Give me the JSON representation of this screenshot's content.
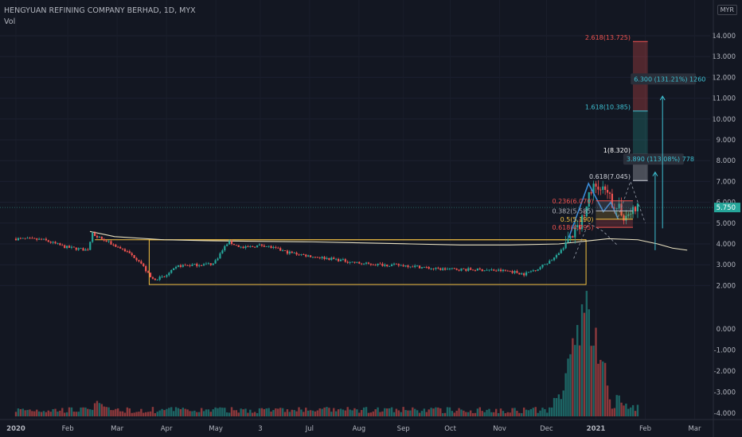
{
  "header": {
    "symbol_line": "HENGYUAN REFINING COMPANY BERHAD, 1D, MYX",
    "volume_label": "Vol",
    "currency": "MYR"
  },
  "colors": {
    "background": "#131722",
    "up": "#26a69a",
    "down": "#ef5350",
    "axis_text": "#b2b5be",
    "box": "#f5c242",
    "wave": "#3b8cd8",
    "ma": "#e9e1c0",
    "arrow": "#3ec1d3"
  },
  "chart_data": {
    "type": "candlestick",
    "price_axis": {
      "ticks": [
        "14.000",
        "13.000",
        "12.000",
        "11.000",
        "10.000",
        "9.000",
        "8.000",
        "7.000",
        "6.000",
        "5.000",
        "4.000",
        "3.000",
        "2.000"
      ],
      "range": [
        1.4,
        15.7
      ]
    },
    "volume_axis": {
      "ticks": [
        "0.000",
        "-1.000",
        "-2.000",
        "-3.000",
        "-4.000"
      ]
    },
    "time_axis": [
      "2020",
      "Feb",
      "Mar",
      "Apr",
      "May",
      "3",
      "Jul",
      "Aug",
      "Sep",
      "Oct",
      "Nov",
      "Dec",
      "2021",
      "Feb",
      "Mar"
    ],
    "last_price": "5.750",
    "price_path": [
      [
        0,
        4.25
      ],
      [
        0.55,
        4.2
      ],
      [
        1.0,
        3.85
      ],
      [
        1.45,
        3.7
      ],
      [
        1.55,
        4.5
      ],
      [
        1.85,
        4.1
      ],
      [
        2.2,
        3.7
      ],
      [
        2.5,
        3.2
      ],
      [
        2.75,
        2.3
      ],
      [
        3.0,
        2.4
      ],
      [
        3.3,
        2.95
      ],
      [
        3.7,
        3.0
      ],
      [
        4.0,
        3.05
      ],
      [
        4.3,
        4.1
      ],
      [
        4.6,
        3.8
      ],
      [
        5.0,
        3.95
      ],
      [
        5.5,
        3.6
      ],
      [
        6.0,
        3.4
      ],
      [
        6.5,
        3.25
      ],
      [
        7.0,
        3.05
      ],
      [
        7.5,
        3.0
      ],
      [
        8.0,
        2.95
      ],
      [
        8.5,
        2.8
      ],
      [
        9.0,
        2.78
      ],
      [
        9.5,
        2.75
      ],
      [
        10.0,
        2.7
      ],
      [
        10.3,
        2.55
      ],
      [
        10.6,
        2.85
      ],
      [
        10.95,
        3.4
      ],
      [
        11.2,
        4.2
      ],
      [
        11.45,
        5.0
      ],
      [
        11.62,
        6.5
      ],
      [
        11.75,
        6.8
      ],
      [
        11.9,
        6.5
      ],
      [
        12.05,
        6.1
      ],
      [
        12.2,
        5.7
      ],
      [
        12.35,
        5.3
      ],
      [
        12.5,
        5.6
      ],
      [
        12.6,
        5.75
      ]
    ],
    "ma_line": [
      [
        1.5,
        4.6
      ],
      [
        2.0,
        4.35
      ],
      [
        3.0,
        4.2
      ],
      [
        4.0,
        4.15
      ],
      [
        5.0,
        4.12
      ],
      [
        6.0,
        4.1
      ],
      [
        7.0,
        4.05
      ],
      [
        8.0,
        4.0
      ],
      [
        9.0,
        3.95
      ],
      [
        10.0,
        3.95
      ],
      [
        11.0,
        4.0
      ],
      [
        11.6,
        4.15
      ],
      [
        12.0,
        4.25
      ],
      [
        12.6,
        4.2
      ],
      [
        13.0,
        4.0
      ],
      [
        13.3,
        3.8
      ],
      [
        13.6,
        3.7
      ]
    ],
    "consolidation_box": {
      "from": 2.7,
      "to": 11.55,
      "top": 4.2,
      "bottom": 2.05
    },
    "wave_path": [
      [
        11.2,
        4.3
      ],
      [
        11.6,
        6.9
      ],
      [
        11.9,
        5.55
      ],
      [
        12.05,
        6.0
      ],
      [
        12.2,
        5.2
      ]
    ],
    "fibonacci_levels": [
      {
        "label": "0.618(4.795)",
        "value": 4.795,
        "color": "#ef5350"
      },
      {
        "label": "0.5(5.190)",
        "value": 5.19,
        "color": "#f5c242"
      },
      {
        "label": "0.382(5.585)",
        "value": 5.585,
        "color": "#b2b5be"
      },
      {
        "label": "0.236(6.070)",
        "value": 6.07,
        "color": "#ef5350"
      }
    ],
    "extension_levels": [
      {
        "label": "0.618(7.045)",
        "value": 7.045,
        "color": "#d1d4dc"
      },
      {
        "label": "1(8.320)",
        "value": 8.32,
        "color": "#ffffff"
      },
      {
        "label": "1.618(10.385)",
        "value": 10.385,
        "color": "#3ec1d3"
      },
      {
        "label": "2.618(13.725)",
        "value": 13.725,
        "color": "#ef5350"
      }
    ],
    "targets": [
      {
        "label": "3.890 (113.08%) 778",
        "from": 3.7,
        "to": 7.45
      },
      {
        "label": "6.300 (131.21%) 1260",
        "from": 4.75,
        "to": 11.1
      }
    ],
    "volume_peak_index": 11.55
  }
}
